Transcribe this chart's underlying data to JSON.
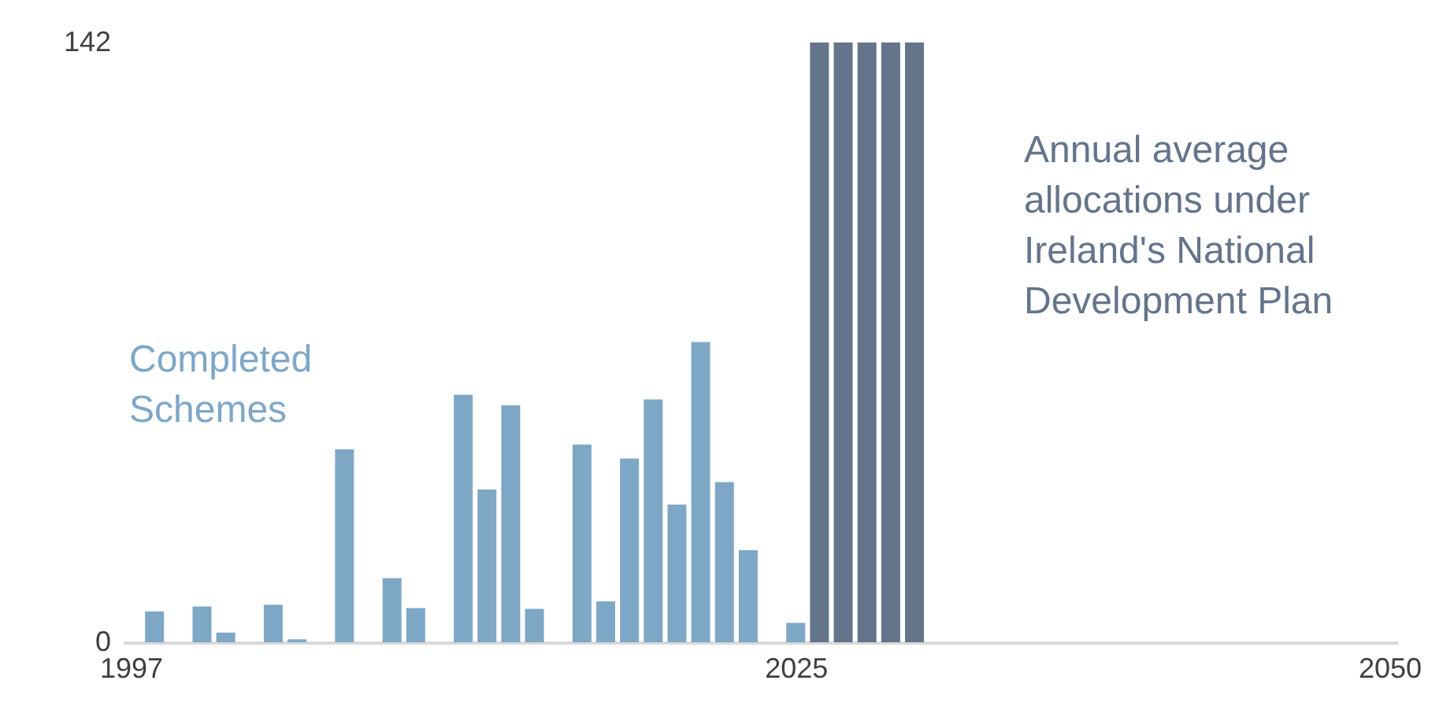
{
  "chart_data": {
    "type": "bar",
    "series": [
      {
        "name": "Completed Schemes",
        "color": "#7ea7c6",
        "x": [
          1998,
          2000,
          2001,
          2003,
          2004,
          2006,
          2008,
          2009,
          2011,
          2012,
          2013,
          2014,
          2016,
          2017,
          2018,
          2019,
          2020,
          2021,
          2022,
          2023,
          2025
        ],
        "values": [
          7.3,
          8.5,
          2.3,
          8.9,
          0.7,
          45.7,
          15.2,
          8.1,
          58.6,
          36.2,
          56.1,
          7.9,
          46.8,
          9.7,
          43.5,
          57.5,
          32.6,
          71.1,
          37.9,
          21.8,
          4.6
        ]
      },
      {
        "name": "Annual average allocations under Ireland's National Development Plan",
        "color": "#64748b",
        "x": [
          2026,
          2027,
          2028,
          2029,
          2030
        ],
        "values": [
          142,
          142,
          142,
          142,
          142
        ]
      }
    ],
    "xlim": [
      1997,
      2050
    ],
    "xticks": [
      1997,
      2025,
      2050
    ],
    "ylim": [
      0,
      142
    ],
    "yticks": [
      0,
      142
    ],
    "grid": false
  }
}
